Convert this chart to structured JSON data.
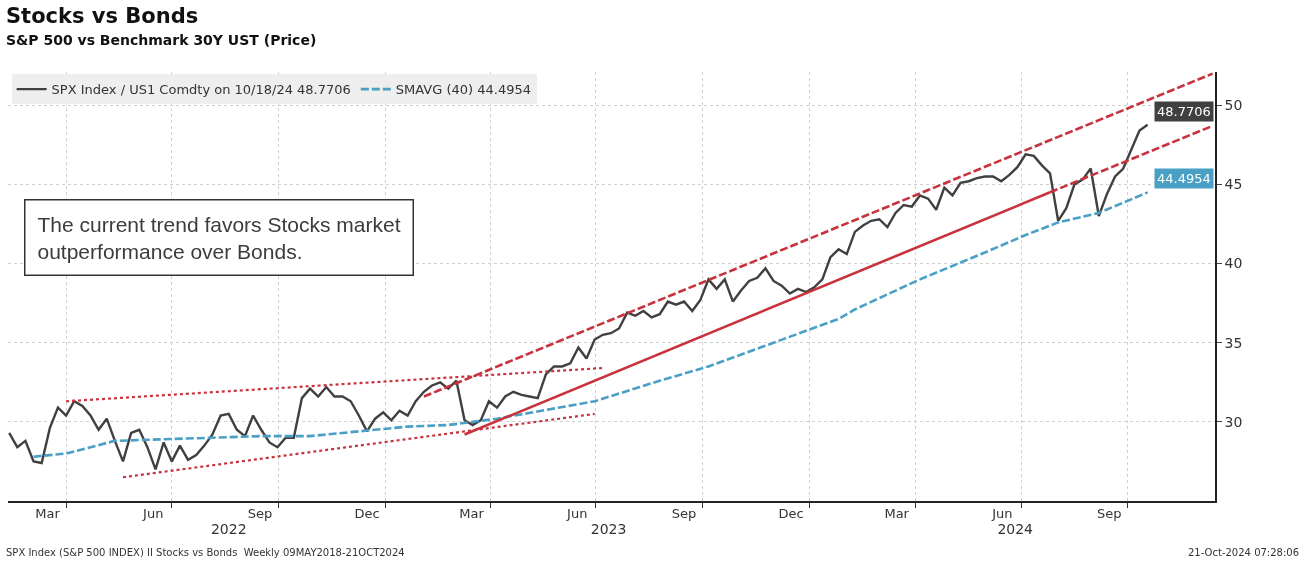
{
  "chart_data": {
    "type": "line",
    "title": "Stocks vs Bonds",
    "subtitle": "S&P 500 vs Benchmark 30Y UST (Price)",
    "annotations": [
      "The current trend favors Stocks market\noutperformance over Bonds.",
      "SPX Index (S&P 500 INDEX) II Stocks vs Bonds  Weekly 09MAY2018-21OCT2024",
      "21-Oct-2024 07:28:06"
    ],
    "xlim": [
      "2022-02-10",
      "2024-12-15"
    ],
    "xticks": [
      {
        "value": "2022-03-16",
        "label": "Mar"
      },
      {
        "value": "2022-04-01",
        "label": null
      },
      {
        "value": "2022-06-15",
        "label": "Jun"
      },
      {
        "value": "2022-07-01",
        "label": null
      },
      {
        "value": "2022-09-15",
        "label": "Sep"
      },
      {
        "value": "2022-10-01",
        "label": null
      },
      {
        "value": "2022-12-16",
        "label": "Dec"
      },
      {
        "value": "2023-01-01",
        "label": null
      },
      {
        "value": "2023-03-16",
        "label": "Mar"
      },
      {
        "value": "2023-04-01",
        "label": null
      },
      {
        "value": "2023-06-15",
        "label": "Jun"
      },
      {
        "value": "2023-07-01",
        "label": null
      },
      {
        "value": "2023-09-15",
        "label": "Sep"
      },
      {
        "value": "2023-10-01",
        "label": null
      },
      {
        "value": "2023-12-16",
        "label": "Dec"
      },
      {
        "value": "2024-01-01",
        "label": null
      },
      {
        "value": "2024-03-16",
        "label": "Mar"
      },
      {
        "value": "2024-04-01",
        "label": null
      },
      {
        "value": "2024-06-15",
        "label": "Jun"
      },
      {
        "value": "2024-07-01",
        "label": null
      },
      {
        "value": "2024-09-15",
        "label": "Sep"
      },
      {
        "value": "2024-10-01",
        "label": null
      }
    ],
    "x2lim": [
      "2022-02-10",
      "2024-12-15"
    ],
    "x2ticks": [
      {
        "value": "2022-08-19",
        "label": "2022"
      },
      {
        "value": "2023-07-12",
        "label": "2023"
      },
      {
        "value": "2024-06-26",
        "label": "2024"
      }
    ],
    "ylim": [
      25,
      52.1
    ],
    "yticks": [
      30,
      35,
      40,
      45,
      50
    ],
    "grid": true,
    "legend": "top left",
    "series": [
      {
        "name": "SPX Index / US1 Comdty on 10/18/24 48.7706",
        "color": "#404040",
        "line_style": "solid",
        "x": [
          "2022-02-11",
          "2022-02-18",
          "2022-02-25",
          "2022-03-04",
          "2022-03-11",
          "2022-03-18",
          "2022-03-25",
          "2022-04-01",
          "2022-04-08",
          "2022-04-15",
          "2022-04-22",
          "2022-04-29",
          "2022-05-06",
          "2022-05-13",
          "2022-05-20",
          "2022-05-27",
          "2022-06-03",
          "2022-06-10",
          "2022-06-17",
          "2022-06-24",
          "2022-07-01",
          "2022-07-08",
          "2022-07-15",
          "2022-07-22",
          "2022-07-29",
          "2022-08-05",
          "2022-08-12",
          "2022-08-19",
          "2022-08-26",
          "2022-09-02",
          "2022-09-09",
          "2022-09-16",
          "2022-09-23",
          "2022-09-30",
          "2022-10-07",
          "2022-10-14",
          "2022-10-21",
          "2022-10-28",
          "2022-11-04",
          "2022-11-11",
          "2022-11-18",
          "2022-11-25",
          "2022-12-02",
          "2022-12-09",
          "2022-12-16",
          "2022-12-23",
          "2022-12-30",
          "2023-01-06",
          "2023-01-13",
          "2023-01-20",
          "2023-01-27",
          "2023-02-03",
          "2023-02-10",
          "2023-02-17",
          "2023-02-24",
          "2023-03-03",
          "2023-03-10",
          "2023-03-17",
          "2023-03-24",
          "2023-03-31",
          "2023-04-07",
          "2023-04-14",
          "2023-04-21",
          "2023-04-28",
          "2023-05-05",
          "2023-05-12",
          "2023-05-19",
          "2023-05-26",
          "2023-06-02",
          "2023-06-09",
          "2023-06-16",
          "2023-06-23",
          "2023-06-30",
          "2023-07-07",
          "2023-07-14",
          "2023-07-21",
          "2023-07-28",
          "2023-08-04",
          "2023-08-11",
          "2023-08-18",
          "2023-08-25",
          "2023-09-01",
          "2023-09-08",
          "2023-09-15",
          "2023-09-22",
          "2023-09-29",
          "2023-10-06",
          "2023-10-13",
          "2023-10-20",
          "2023-10-27",
          "2023-11-03",
          "2023-11-10",
          "2023-11-17",
          "2023-11-24",
          "2023-12-01",
          "2023-12-08",
          "2023-12-15",
          "2023-12-22",
          "2023-12-29",
          "2024-01-05",
          "2024-01-12",
          "2024-01-19",
          "2024-01-26",
          "2024-02-02",
          "2024-02-09",
          "2024-02-16",
          "2024-02-23",
          "2024-03-01",
          "2024-03-08",
          "2024-03-15",
          "2024-03-22",
          "2024-03-29",
          "2024-04-05",
          "2024-04-12",
          "2024-04-19",
          "2024-04-26",
          "2024-05-03",
          "2024-05-10",
          "2024-05-17",
          "2024-05-24",
          "2024-05-31",
          "2024-06-07",
          "2024-06-14",
          "2024-06-21",
          "2024-06-28",
          "2024-07-05",
          "2024-07-12",
          "2024-07-19",
          "2024-07-26",
          "2024-08-02",
          "2024-08-09",
          "2024-08-16",
          "2024-08-23",
          "2024-08-30",
          "2024-09-06",
          "2024-09-13",
          "2024-09-20",
          "2024-09-27",
          "2024-10-04",
          "2024-10-11",
          "2024-10-18"
        ],
        "values": [
          29.3,
          28.4,
          28.8,
          27.5,
          27.4,
          29.6,
          30.9,
          30.4,
          31.3,
          31.0,
          30.4,
          29.5,
          30.2,
          28.8,
          27.5,
          29.3,
          29.5,
          28.4,
          27.0,
          28.7,
          27.5,
          28.5,
          27.6,
          27.9,
          28.5,
          29.2,
          30.4,
          30.5,
          29.5,
          29.1,
          30.4,
          29.5,
          28.7,
          28.4,
          29.0,
          29.0,
          31.5,
          32.1,
          31.6,
          32.2,
          31.6,
          31.6,
          31.3,
          30.4,
          29.4,
          30.2,
          30.6,
          30.1,
          30.7,
          30.4,
          31.3,
          31.9,
          32.3,
          32.5,
          32.1,
          32.6,
          30.1,
          29.8,
          30.1,
          31.3,
          30.9,
          31.6,
          31.9,
          31.7,
          31.6,
          31.5,
          33.0,
          33.5,
          33.5,
          33.7,
          34.7,
          34.0,
          35.2,
          35.5,
          35.6,
          35.9,
          36.9,
          36.7,
          37.0,
          36.6,
          36.8,
          37.6,
          37.4,
          37.6,
          37.0,
          37.7,
          39.0,
          38.4,
          39.0,
          37.6,
          38.3,
          38.9,
          39.1,
          39.7,
          38.9,
          38.6,
          38.1,
          38.4,
          38.2,
          38.5,
          39.0,
          40.4,
          40.9,
          40.6,
          42.0,
          42.4,
          42.7,
          42.8,
          42.3,
          43.2,
          43.7,
          43.6,
          44.3,
          44.1,
          43.4,
          44.8,
          44.3,
          45.1,
          45.2,
          45.4,
          45.5,
          45.5,
          45.2,
          45.6,
          46.1,
          46.9,
          46.8,
          46.2,
          45.7,
          42.7,
          43.5,
          45.0,
          45.3,
          46.0,
          43.0,
          44.4,
          45.5,
          46.0,
          47.2,
          48.4,
          48.7706
        ],
        "value_labels": [
          null,
          null,
          null,
          null,
          null,
          null,
          null,
          null,
          null,
          null,
          null,
          null,
          null,
          null,
          null,
          null,
          null,
          null,
          null,
          null,
          null,
          null,
          null,
          null,
          null,
          null,
          null,
          null,
          null,
          null,
          null,
          null,
          null,
          null,
          null,
          null,
          null,
          null,
          null,
          null,
          null,
          null,
          null,
          null,
          null,
          null,
          null,
          null,
          null,
          null,
          null,
          null,
          null,
          null,
          null,
          null,
          null,
          null,
          null,
          null,
          null,
          null,
          null,
          null,
          null,
          null,
          null,
          null,
          null,
          null,
          null,
          null,
          null,
          null,
          null,
          null,
          null,
          null,
          null,
          null,
          null,
          null,
          null,
          null,
          null,
          null,
          null,
          null,
          null,
          null,
          null,
          null,
          null,
          null,
          null,
          null,
          null,
          null,
          null,
          null,
          null,
          null,
          null,
          null,
          null,
          null,
          null,
          null,
          null,
          null,
          null,
          null,
          null,
          null,
          null,
          null,
          null,
          null,
          null,
          null,
          null,
          null,
          null,
          null,
          null,
          null,
          null,
          null,
          null,
          null,
          null,
          null,
          null,
          null,
          null,
          null,
          null,
          null,
          null,
          null,
          "48.7706"
        ]
      },
      {
        "name": "SMAVG (40) 44.4954",
        "color": "#4a9fc4",
        "line_style": "dashed",
        "x": [
          "2022-03-04",
          "2022-04-01",
          "2022-05-13",
          "2022-06-24",
          "2022-08-05",
          "2022-09-16",
          "2022-10-28",
          "2022-12-09",
          "2023-01-20",
          "2023-02-24",
          "2023-04-07",
          "2023-06-30",
          "2023-08-25",
          "2023-10-06",
          "2023-12-01",
          "2024-01-26",
          "2024-02-09",
          "2024-04-05",
          "2024-05-31",
          "2024-07-05",
          "2024-08-02",
          "2024-09-06",
          "2024-10-18"
        ],
        "values": [
          27.8,
          28.0,
          28.8,
          28.9,
          29.0,
          29.1,
          29.1,
          29.4,
          29.7,
          29.8,
          30.2,
          31.3,
          32.6,
          33.5,
          35.0,
          36.5,
          37.1,
          39.0,
          40.7,
          41.8,
          42.6,
          43.2,
          44.4954
        ],
        "value_labels": [
          null,
          null,
          null,
          null,
          null,
          null,
          null,
          null,
          null,
          null,
          null,
          null,
          null,
          null,
          null,
          null,
          null,
          null,
          null,
          null,
          null,
          null,
          "44.4954"
        ]
      },
      {
        "type": "line",
        "color": "#c8323c",
        "line_style": "dotted",
        "x": [
          "2022-04-01",
          "2023-07-07"
        ],
        "values": [
          31.3,
          33.4
        ]
      },
      {
        "type": "line",
        "color": "#c8323c",
        "line_style": "dotted",
        "x": [
          "2022-05-20",
          "2023-06-30"
        ],
        "values": [
          26.5,
          30.5
        ]
      },
      {
        "type": "line",
        "color": "#c8323c",
        "line_style": "dashed",
        "x": [
          "2023-02-03",
          "2024-12-13"
        ],
        "values": [
          31.6,
          52.0
        ]
      },
      {
        "type": "line",
        "color": "#c8323c",
        "line_style": "solid",
        "x": [
          "2023-03-10",
          "2024-07-26"
        ],
        "values": [
          29.2,
          44.5
        ]
      },
      {
        "type": "line",
        "color": "#c8323c",
        "line_style": "dashed",
        "x": [
          "2024-07-26",
          "2024-12-13"
        ],
        "values": [
          44.5,
          48.7
        ]
      }
    ]
  }
}
